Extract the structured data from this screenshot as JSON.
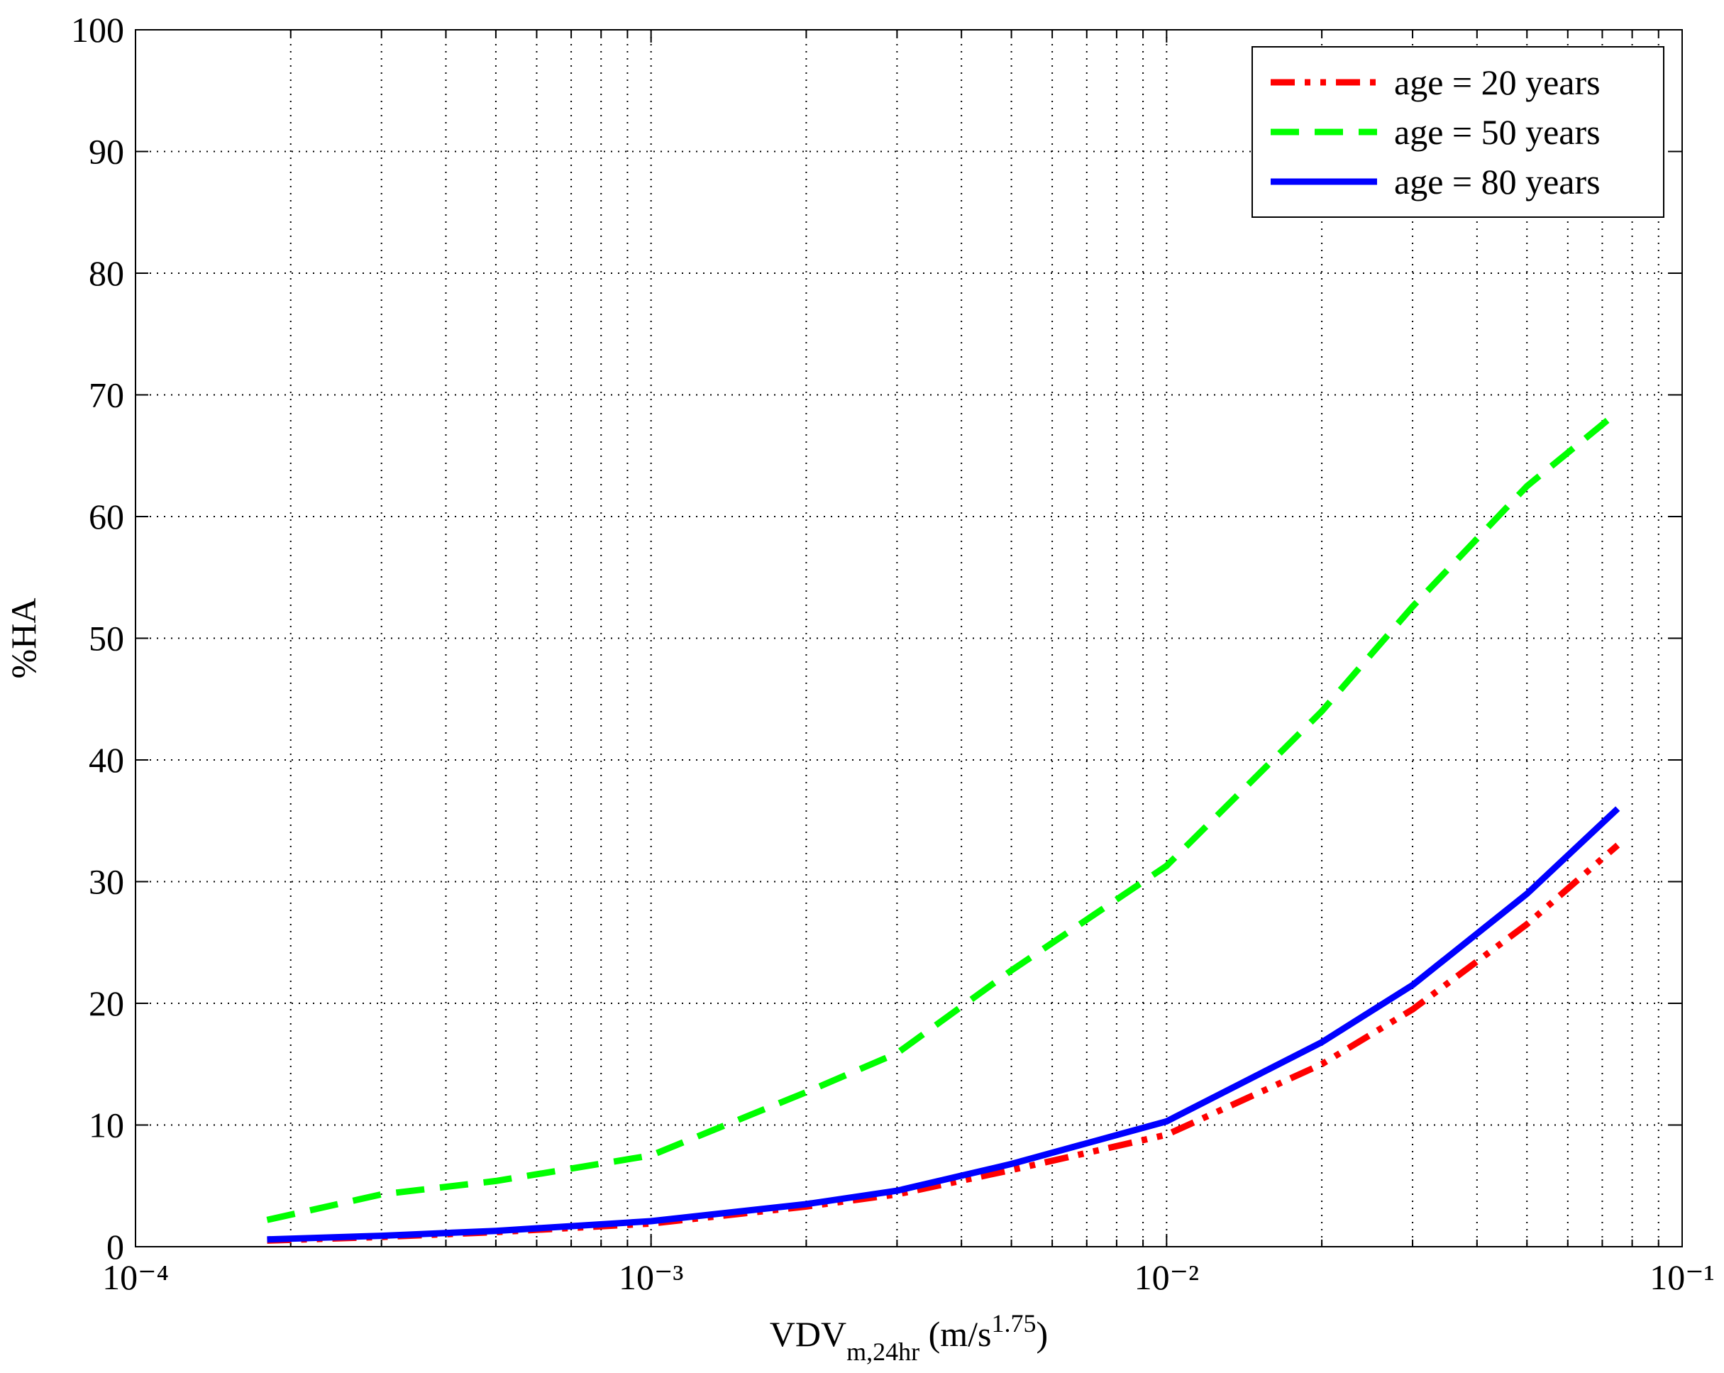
{
  "chart_data": {
    "type": "line",
    "xlabel": [
      "VDV",
      "m,24hr",
      " (m/s",
      "1.75",
      ")"
    ],
    "ylabel": "%HA",
    "x": [
      0.00018,
      0.0003,
      0.0005,
      0.001,
      0.002,
      0.003,
      0.005,
      0.01,
      0.02,
      0.03,
      0.05,
      0.075
    ],
    "series": [
      {
        "name": "age = 20 years",
        "color": "#ff0000",
        "style": "dashdotdot",
        "values": [
          0.5,
          0.8,
          1.2,
          1.9,
          3.3,
          4.3,
          6.3,
          9.2,
          15,
          19.5,
          26.5,
          33
        ]
      },
      {
        "name": "age = 50 years",
        "color": "#00ff00",
        "style": "dashed",
        "values": [
          2.2,
          4.3,
          5.4,
          7.5,
          12.7,
          15.9,
          22.7,
          31.3,
          44,
          52.6,
          62.5,
          68.6
        ]
      },
      {
        "name": "age = 80 years",
        "color": "#0000ff",
        "style": "solid",
        "values": [
          0.6,
          0.9,
          1.3,
          2.1,
          3.5,
          4.6,
          6.8,
          10.3,
          16.8,
          21.5,
          29,
          36
        ]
      }
    ],
    "xscale": "log",
    "xlim": [
      0.0001,
      0.1
    ],
    "xticks": [
      {
        "value": 0.0001,
        "label": "10⁻⁴"
      },
      {
        "value": 0.001,
        "label": "10⁻³"
      },
      {
        "value": 0.01,
        "label": "10⁻²"
      },
      {
        "value": 0.1,
        "label": "10⁻¹"
      }
    ],
    "ylim": [
      0,
      100
    ],
    "yticks": [
      0,
      10,
      20,
      30,
      40,
      50,
      60,
      70,
      80,
      90,
      100
    ],
    "grid": true,
    "minor_grid": true,
    "legend": "upper right"
  }
}
